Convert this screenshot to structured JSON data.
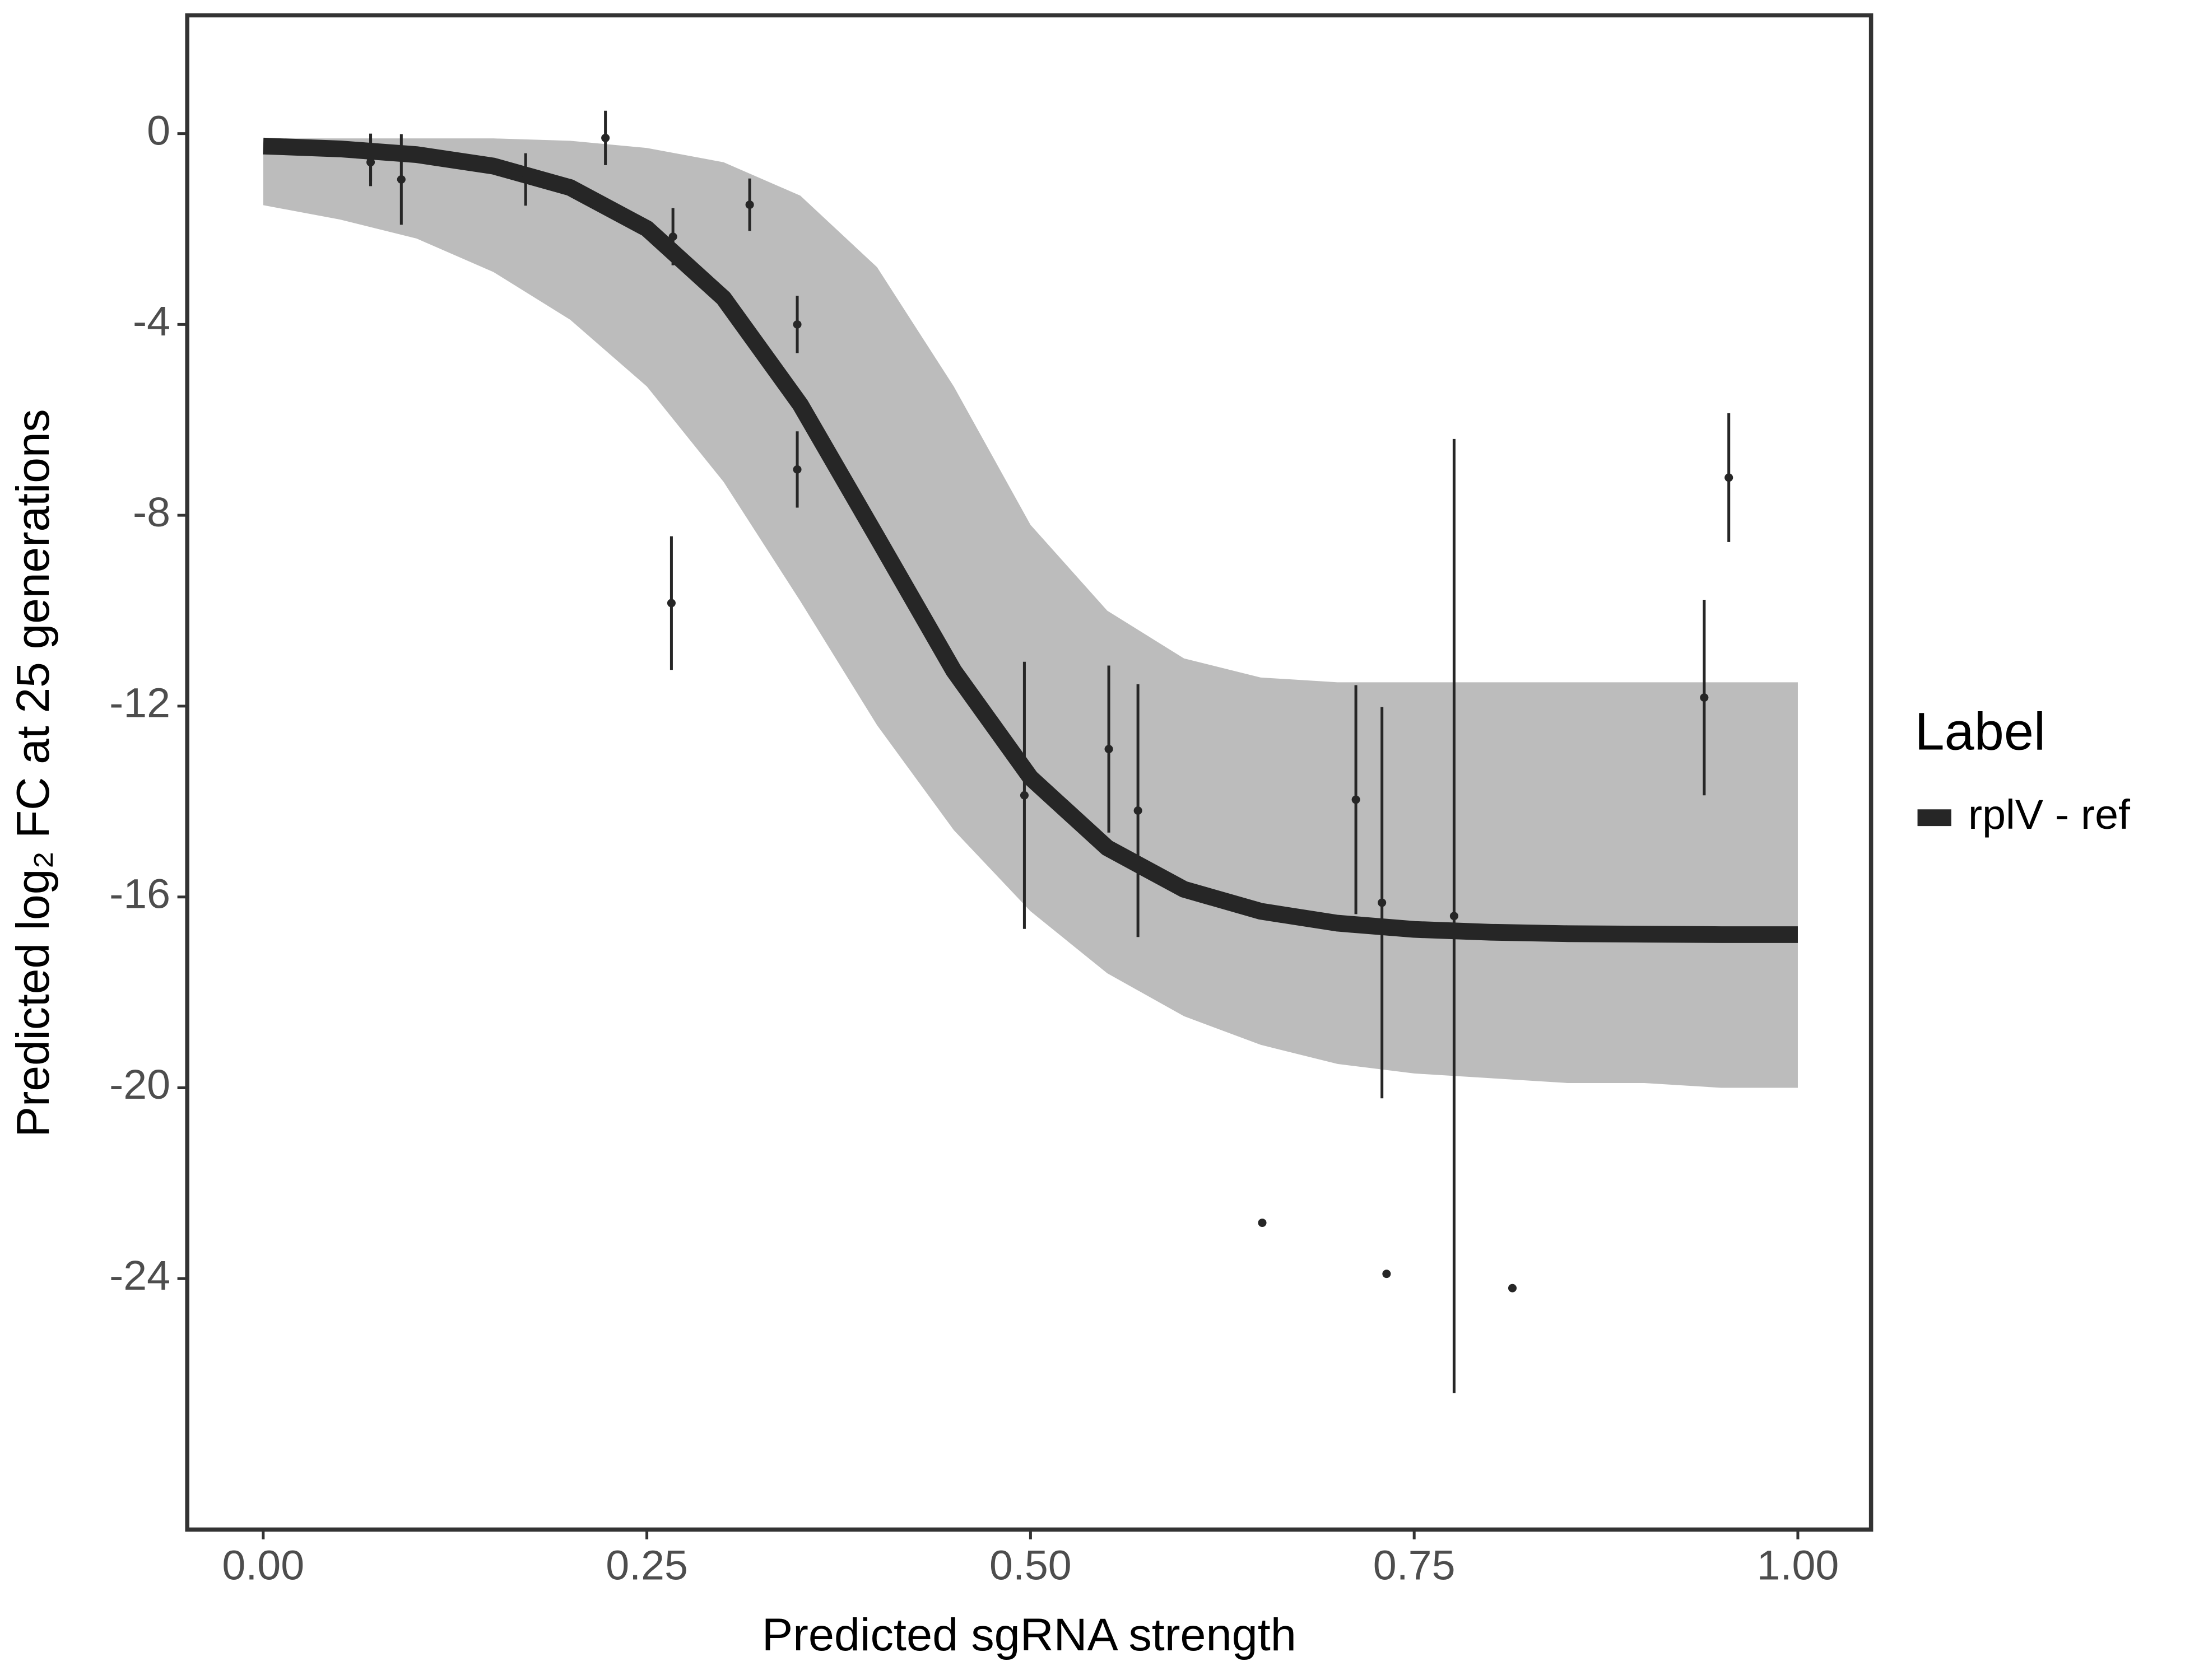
{
  "chart_data": {
    "type": "line",
    "x_label": "Predicted sgRNA strength",
    "y_label": "Predicted log₂ FC at 25 generations",
    "legend_title": "Label",
    "legend_position": "right",
    "grid": false,
    "xlim": [
      -0.0495,
      1.0477
    ],
    "ylim": [
      -29.26,
      2.48
    ],
    "xticks": [
      {
        "value": 0,
        "label": "0.00"
      },
      0.25,
      {
        "value": 0.5,
        "label": "0.50"
      },
      0.75,
      {
        "value": 1,
        "label": "1.00"
      }
    ],
    "yticks": [
      0,
      -4,
      -8,
      -12,
      -16,
      -20,
      -24
    ],
    "series": [
      {
        "name": "rplV - ref",
        "color": "#262626",
        "x": [
          0,
          0.05,
          0.1,
          0.15,
          0.2,
          0.25,
          0.3,
          0.35,
          0.4,
          0.45,
          0.5,
          0.55,
          0.6,
          0.65,
          0.7,
          0.75,
          0.8,
          0.85,
          0.9,
          0.95,
          1
        ],
        "values": [
          -0.26,
          -0.32,
          -0.44,
          -0.68,
          -1.13,
          -1.99,
          -3.45,
          -5.68,
          -8.46,
          -11.26,
          -13.5,
          -14.97,
          -15.84,
          -16.3,
          -16.55,
          -16.68,
          -16.74,
          -16.77,
          -16.78,
          -16.79,
          -16.79
        ]
      }
    ],
    "band": {
      "color": "#a6a6a6",
      "x": [
        0,
        0.05,
        0.1,
        0.15,
        0.2,
        0.25,
        0.3,
        0.35,
        0.4,
        0.45,
        0.5,
        0.55,
        0.6,
        0.65,
        0.7,
        0.75,
        0.8,
        0.85,
        0.9,
        0.95,
        1
      ],
      "upper": [
        -0.1,
        -0.1,
        -0.1,
        -0.1,
        -0.15,
        -0.3,
        -0.6,
        -1.3,
        -2.8,
        -5.3,
        -8.2,
        -10.0,
        -11.0,
        -11.4,
        -11.5,
        -11.5,
        -11.5,
        -11.5,
        -11.5,
        -11.5,
        -11.5
      ],
      "lower": [
        -1.5,
        -1.8,
        -2.2,
        -2.9,
        -3.9,
        -5.3,
        -7.3,
        -9.8,
        -12.4,
        -14.6,
        -16.3,
        -17.6,
        -18.5,
        -19.1,
        -19.5,
        -19.7,
        -19.8,
        -19.9,
        -19.9,
        -20.0,
        -20.0
      ]
    },
    "points": {
      "color": "#262626",
      "x": [
        0.07,
        0.07,
        0.09,
        0.171,
        0.223,
        0.266,
        0.267,
        0.317,
        0.348,
        0.348,
        0.496,
        0.551,
        0.57,
        0.651,
        0.712,
        0.729,
        0.732,
        0.776,
        0.814,
        0.939,
        0.955
      ],
      "values": [
        -0.5,
        -0.6,
        -0.96,
        -0.96,
        -0.09,
        -9.84,
        -2.16,
        -1.49,
        -4.0,
        -7.04,
        -13.87,
        -12.9,
        -14.19,
        -22.83,
        -13.96,
        -16.12,
        -23.9,
        -16.4,
        -24.2,
        -11.82,
        -7.21
      ],
      "errors": [
        0.5,
        0.5,
        0.95,
        0.55,
        0.57,
        1.4,
        0.6,
        0.55,
        0.6,
        0.8,
        2.8,
        1.75,
        2.65,
        0,
        2.4,
        4.1,
        0,
        10,
        0,
        2.05,
        1.35
      ]
    }
  }
}
